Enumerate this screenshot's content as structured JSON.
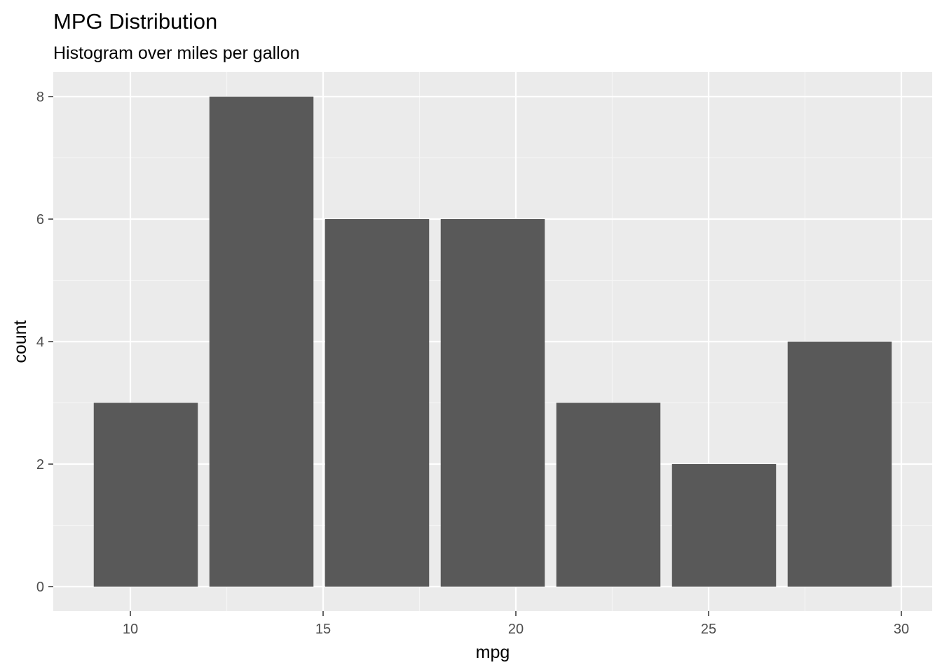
{
  "chart_data": {
    "type": "bar",
    "subtype": "histogram",
    "title": "MPG Distribution",
    "subtitle": "Histogram over miles per gallon",
    "xlabel": "mpg",
    "ylabel": "count",
    "bins": [
      {
        "x_center": 10.4,
        "x_min": 9.05,
        "x_max": 11.75,
        "count": 3
      },
      {
        "x_center": 13.4,
        "x_min": 12.05,
        "x_max": 14.75,
        "count": 8
      },
      {
        "x_center": 16.4,
        "x_min": 15.05,
        "x_max": 17.75,
        "count": 6
      },
      {
        "x_center": 19.4,
        "x_min": 18.05,
        "x_max": 20.75,
        "count": 6
      },
      {
        "x_center": 22.4,
        "x_min": 21.05,
        "x_max": 23.75,
        "count": 3
      },
      {
        "x_center": 25.4,
        "x_min": 24.05,
        "x_max": 26.75,
        "count": 2
      },
      {
        "x_center": 28.4,
        "x_min": 27.05,
        "x_max": 29.75,
        "count": 4
      }
    ],
    "xlim": [
      8.0,
      30.8
    ],
    "ylim": [
      -0.4,
      8.4
    ],
    "x_ticks": [
      10,
      15,
      20,
      25,
      30
    ],
    "x_tick_labels": [
      "10",
      "15",
      "20",
      "25",
      "30"
    ],
    "y_ticks": [
      0,
      2,
      4,
      6,
      8
    ],
    "y_tick_labels": [
      "0",
      "2",
      "4",
      "6",
      "8"
    ],
    "x_minor_gridlines": [
      12.5,
      17.5,
      22.5,
      27.5
    ],
    "y_minor_gridlines": [
      1,
      3,
      5,
      7
    ],
    "grid": true,
    "legend": "none",
    "colors": {
      "bar_fill": "#595959",
      "panel_background": "#EBEBEB",
      "grid_major": "#FFFFFF",
      "grid_minor": "#F5F5F5",
      "tick_mark": "#333333",
      "tick_label": "#4D4D4D"
    }
  }
}
